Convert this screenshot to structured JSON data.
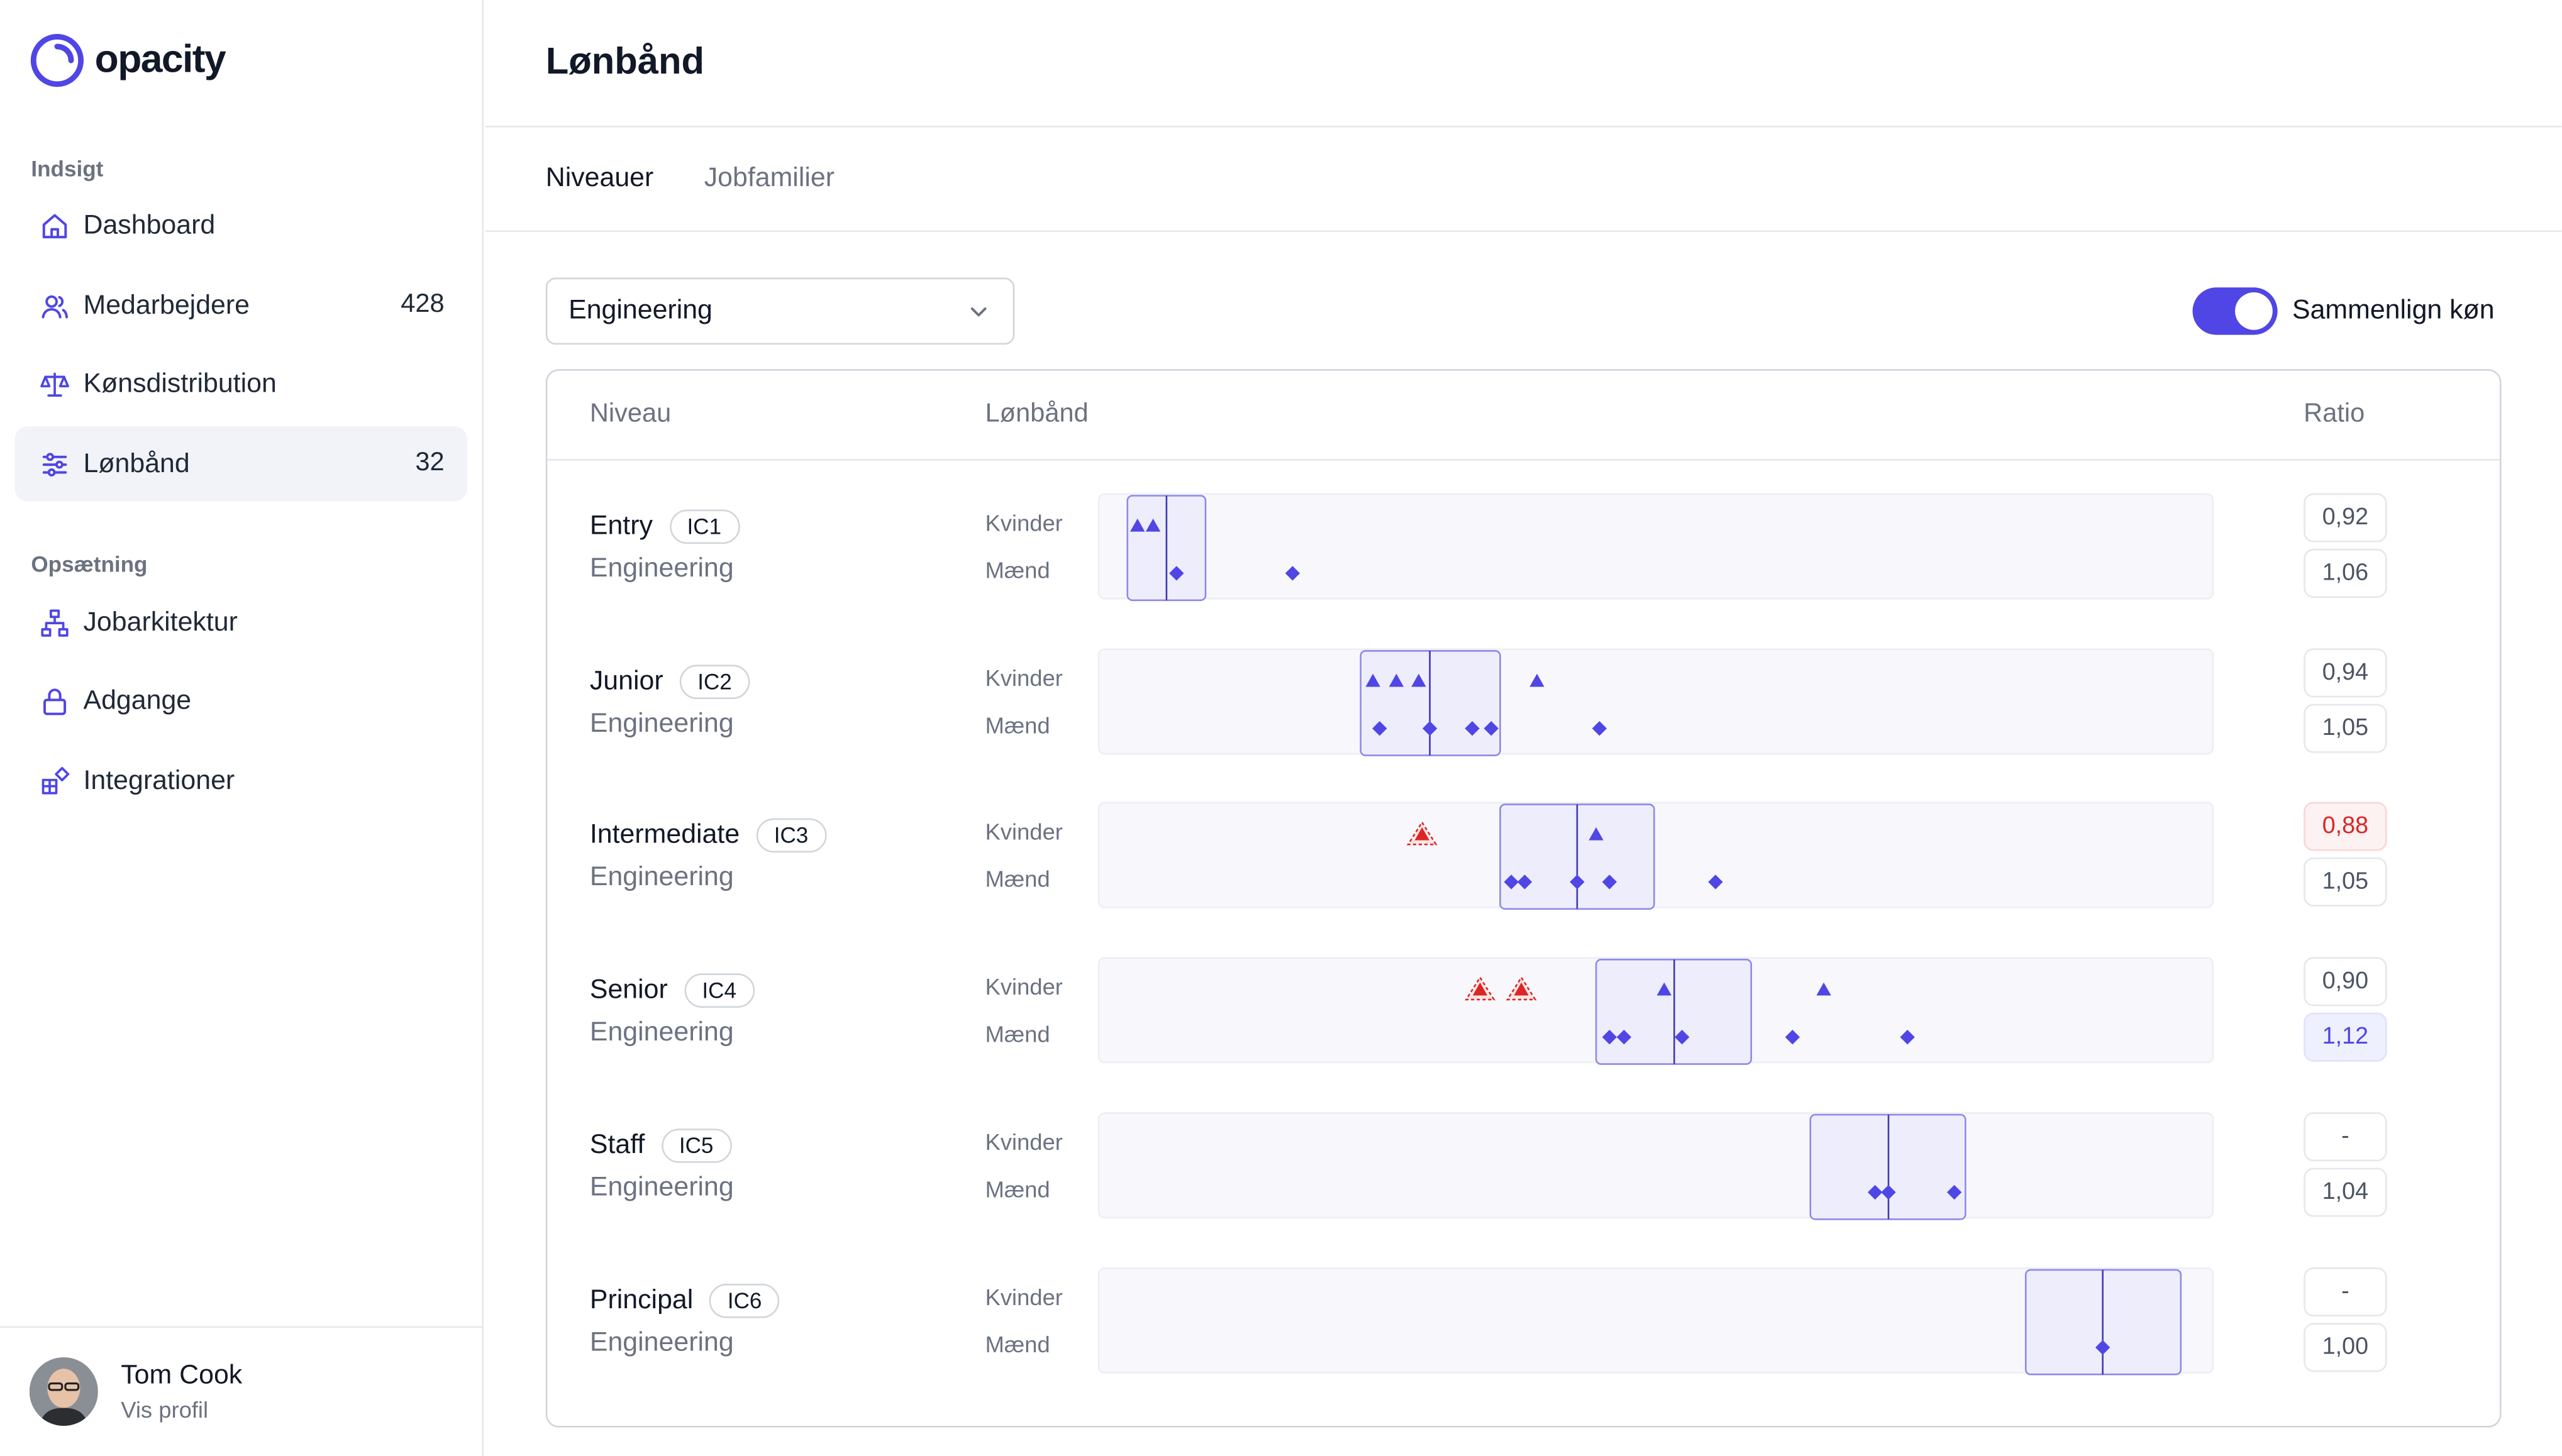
{
  "app": {
    "brand": "opacity"
  },
  "sidebar": {
    "sections": [
      {
        "label": "Indsigt",
        "items": [
          {
            "label": "Dashboard",
            "icon": "home-icon",
            "count": ""
          },
          {
            "label": "Medarbejdere",
            "icon": "users-icon",
            "count": "428"
          },
          {
            "label": "Kønsdistribution",
            "icon": "scale-icon",
            "count": ""
          },
          {
            "label": "Lønbånd",
            "icon": "sliders-icon",
            "count": "32",
            "active": true
          }
        ]
      },
      {
        "label": "Opsætning",
        "items": [
          {
            "label": "Jobarkitektur",
            "icon": "hierarchy-icon",
            "count": ""
          },
          {
            "label": "Adgange",
            "icon": "lock-icon",
            "count": ""
          },
          {
            "label": "Integrationer",
            "icon": "puzzle-icon",
            "count": ""
          }
        ]
      }
    ],
    "profile": {
      "name": "Tom Cook",
      "link": "Vis profil"
    }
  },
  "header": {
    "title": "Lønbånd"
  },
  "tabs": [
    {
      "label": "Niveauer",
      "active": true
    },
    {
      "label": "Jobfamilier",
      "active": false
    }
  ],
  "filter": {
    "selected": "Engineering"
  },
  "toggle": {
    "label": "Sammenlign køn",
    "on": true
  },
  "table": {
    "columns": {
      "level": "Niveau",
      "band": "Lønbånd",
      "ratio": "Ratio"
    },
    "group_labels": {
      "women": "Kvinder",
      "men": "Mænd"
    },
    "scale": {
      "min": 0,
      "max": 100
    },
    "rows": [
      {
        "name": "Entry",
        "code": "IC1",
        "family": "Engineering",
        "band": {
          "min": 2.5,
          "max": 9.5,
          "median": 6
        },
        "women": [
          {
            "v": 3.4,
            "flag": false
          },
          {
            "v": 4.8,
            "flag": false
          }
        ],
        "men": [
          6.9,
          17.3
        ],
        "ratio_women": {
          "value": "0,92",
          "status": "normal"
        },
        "ratio_men": {
          "value": "1,06",
          "status": "normal"
        }
      },
      {
        "name": "Junior",
        "code": "IC2",
        "family": "Engineering",
        "band": {
          "min": 23.4,
          "max": 35.9,
          "median": 29.6
        },
        "women": [
          {
            "v": 24.5,
            "flag": false
          },
          {
            "v": 26.6,
            "flag": false
          },
          {
            "v": 28.6,
            "flag": false
          },
          {
            "v": 39.2,
            "flag": false
          }
        ],
        "men": [
          25.1,
          29.6,
          33.4,
          35.1,
          44.8
        ],
        "ratio_women": {
          "value": "0,94",
          "status": "normal"
        },
        "ratio_men": {
          "value": "1,05",
          "status": "normal"
        }
      },
      {
        "name": "Intermediate",
        "code": "IC3",
        "family": "Engineering",
        "band": {
          "min": 35.9,
          "max": 49.7,
          "median": 42.8
        },
        "women": [
          {
            "v": 28.9,
            "flag": true
          },
          {
            "v": 44.5,
            "flag": false
          }
        ],
        "men": [
          36.9,
          38.1,
          42.8,
          45.7,
          55.2
        ],
        "ratio_women": {
          "value": "0,88",
          "status": "warning"
        },
        "ratio_men": {
          "value": "1,05",
          "status": "normal"
        }
      },
      {
        "name": "Senior",
        "code": "IC4",
        "family": "Engineering",
        "band": {
          "min": 44.5,
          "max": 58.4,
          "median": 51.5
        },
        "women": [
          {
            "v": 34.1,
            "flag": true
          },
          {
            "v": 37.8,
            "flag": true
          },
          {
            "v": 50.6,
            "flag": false
          },
          {
            "v": 64.9,
            "flag": false
          }
        ],
        "men": [
          45.7,
          47.0,
          52.2,
          62.1,
          72.4
        ],
        "ratio_women": {
          "value": "0,90",
          "status": "normal"
        },
        "ratio_men": {
          "value": "1,12",
          "status": "high"
        }
      },
      {
        "name": "Staff",
        "code": "IC5",
        "family": "Engineering",
        "band": {
          "min": 63.7,
          "max": 77.6,
          "median": 70.7
        },
        "women": [],
        "men": [
          69.5,
          70.7,
          76.6
        ],
        "ratio_women": {
          "value": "-",
          "status": "normal"
        },
        "ratio_men": {
          "value": "1,04",
          "status": "normal"
        }
      },
      {
        "name": "Principal",
        "code": "IC6",
        "family": "Engineering",
        "band": {
          "min": 83.0,
          "max": 96.9,
          "median": 89.9
        },
        "women": [],
        "men": [
          89.9
        ],
        "ratio_women": {
          "value": "-",
          "status": "normal"
        },
        "ratio_men": {
          "value": "1,00",
          "status": "normal"
        }
      }
    ]
  },
  "colors": {
    "accent": "#4f46e5",
    "band_fill": "#eeedfb",
    "warning": "#dc2626"
  }
}
